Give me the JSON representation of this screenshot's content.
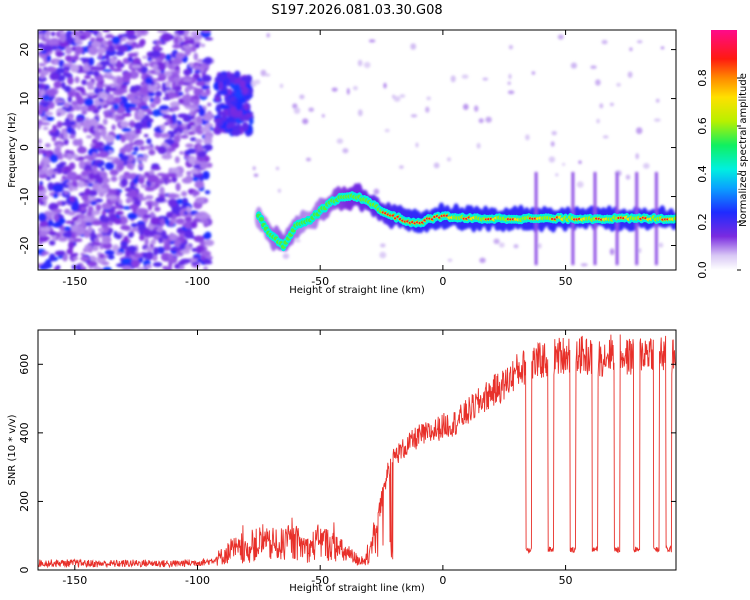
{
  "figure_title": "S197.2026.081.03.30.G08",
  "colors": {
    "snr_line": "#e8302a",
    "axis": "#000000",
    "background": "#ffffff"
  },
  "chart_data": [
    {
      "type": "heatmap",
      "title": "S197.2026.081.03.30.G08",
      "xlabel": "Height of straight line (km)",
      "ylabel": "Frequency (Hz)",
      "xlim": [
        -165,
        95
      ],
      "ylim": [
        -25,
        24
      ],
      "xticks": [
        -150,
        -100,
        -50,
        0,
        50
      ],
      "xtick_labels": [
        "-150",
        "-100",
        "-50",
        "0",
        "50"
      ],
      "yticks": [
        -20,
        -10,
        0,
        10,
        20
      ],
      "ytick_labels": [
        "-20",
        "-10",
        "0",
        "10",
        "20"
      ],
      "colorbar": {
        "label": "Normalized spectral amplitude",
        "range": [
          0,
          1
        ],
        "ticks": [
          0.0,
          0.2,
          0.4,
          0.6,
          0.8
        ],
        "tick_labels": [
          "0.0",
          "0.2",
          "0.4",
          "0.6",
          "0.8"
        ],
        "colormap": "rainbow (white-violet-blue-cyan-green-yellow-red-magenta)"
      },
      "ridge": {
        "description": "Dominant frequency track (Hz) vs height (km)",
        "x": [
          -75,
          -70,
          -65,
          -60,
          -55,
          -50,
          -45,
          -40,
          -35,
          -30,
          -25,
          -20,
          -15,
          -10,
          -5,
          0,
          10,
          20,
          30,
          40,
          50,
          60,
          70,
          80,
          90
        ],
        "freq": [
          -14,
          -18,
          -20,
          -16,
          -15,
          -13,
          -11,
          -10,
          -10,
          -11,
          -13,
          -14,
          -15,
          -15.5,
          -14.5,
          -14,
          -14.5,
          -14.5,
          -14.5,
          -14.5,
          -14.5,
          -14.5,
          -14.5,
          -14.5,
          -14.5
        ],
        "amplitude": [
          0.3,
          0.35,
          0.4,
          0.35,
          0.3,
          0.35,
          0.4,
          0.45,
          0.5,
          0.55,
          0.6,
          0.65,
          0.7,
          0.75,
          0.8,
          0.85,
          0.85,
          0.85,
          0.85,
          0.9,
          0.9,
          0.9,
          0.9,
          0.9,
          0.9
        ]
      },
      "features": {
        "noise_region_km": [
          -165,
          -95
        ],
        "burst_region_km": [
          -92,
          -78
        ],
        "burst_freq_hz": [
          3,
          15
        ],
        "spike_heights_km": [
          38,
          53,
          62,
          71,
          79,
          87
        ]
      }
    },
    {
      "type": "line",
      "xlabel": "Height of straight line (km)",
      "ylabel": "SNR (10 * v/v)",
      "xlim": [
        -165,
        95
      ],
      "ylim": [
        0,
        700
      ],
      "xticks": [
        -150,
        -100,
        -50,
        0,
        50
      ],
      "xtick_labels": [
        "-150",
        "-100",
        "-50",
        "0",
        "50"
      ],
      "yticks": [
        0,
        200,
        400,
        600
      ],
      "ytick_labels": [
        "0",
        "200",
        "400",
        "600"
      ],
      "series": [
        {
          "name": "SNR",
          "x": [
            -165,
            -150,
            -140,
            -130,
            -120,
            -110,
            -100,
            -95,
            -90,
            -85,
            -80,
            -75,
            -70,
            -65,
            -60,
            -55,
            -50,
            -45,
            -40,
            -35,
            -30,
            -28,
            -25,
            -22,
            -20,
            -15,
            -10,
            -5,
            0,
            5,
            10,
            15,
            20,
            25,
            30,
            35,
            40,
            45,
            50,
            55,
            60,
            65,
            70,
            75,
            80,
            85,
            90,
            95
          ],
          "values": [
            20,
            20,
            18,
            19,
            20,
            18,
            22,
            25,
            40,
            60,
            50,
            80,
            70,
            75,
            80,
            60,
            85,
            70,
            50,
            30,
            30,
            100,
            200,
            300,
            330,
            360,
            390,
            400,
            420,
            430,
            460,
            490,
            520,
            540,
            580,
            600,
            610,
            620,
            630,
            630,
            620,
            620,
            640,
            620,
            630,
            640,
            630,
            620
          ]
        }
      ],
      "dropouts": {
        "description": "Sharp SNR drops to ~60",
        "x": [
          35,
          44,
          53,
          62,
          71,
          79,
          87,
          92
        ],
        "floor_value": 60
      }
    }
  ]
}
